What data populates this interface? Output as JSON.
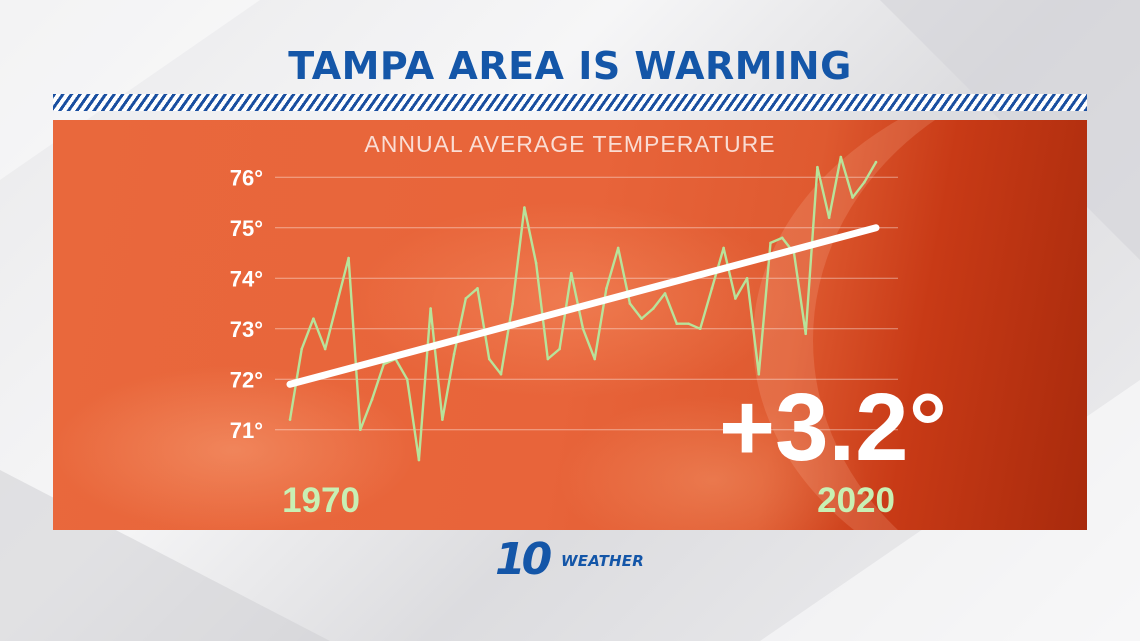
{
  "header": {
    "title": "TAMPA AREA IS WARMING"
  },
  "colors": {
    "title_blue": "#1456a8",
    "panel_orange": "#e8643a",
    "series_line": "#b8e39a",
    "trend_line": "#ffffff",
    "tick_text": "#ffffff",
    "year_text": "#c8f0b4"
  },
  "chart_data": {
    "type": "line",
    "title": "ANNUAL AVERAGE TEMPERATURE",
    "x_start_label": "1970",
    "x_end_label": "2020",
    "xlim": [
      1970,
      2020
    ],
    "ylim": [
      70.5,
      76.5
    ],
    "yticks": [
      {
        "value": 71,
        "label": "71°"
      },
      {
        "value": 72,
        "label": "72°"
      },
      {
        "value": 73,
        "label": "73°"
      },
      {
        "value": 74,
        "label": "74°"
      },
      {
        "value": 75,
        "label": "75°"
      },
      {
        "value": 76,
        "label": "76°"
      }
    ],
    "grid": true,
    "series": [
      {
        "x": [
          1970,
          1971,
          1972,
          1973,
          1974,
          1975,
          1976,
          1977,
          1978,
          1979,
          1980,
          1981,
          1982,
          1983,
          1984,
          1985,
          1986,
          1987,
          1988,
          1989,
          1990,
          1991,
          1992,
          1993,
          1994,
          1995,
          1996,
          1997,
          1998,
          1999,
          2000,
          2001,
          2002,
          2003,
          2004,
          2005,
          2006,
          2007,
          2008,
          2009,
          2010,
          2011,
          2012,
          2013,
          2014,
          2015,
          2016,
          2017,
          2018,
          2019,
          2020
        ],
        "y": [
          71.2,
          72.6,
          73.2,
          72.6,
          73.5,
          74.4,
          71.0,
          71.6,
          72.3,
          72.4,
          72.0,
          70.4,
          73.4,
          71.2,
          72.5,
          73.6,
          73.8,
          72.4,
          72.1,
          73.5,
          75.4,
          74.3,
          72.4,
          72.6,
          74.1,
          73.0,
          72.4,
          73.8,
          74.6,
          73.5,
          73.2,
          73.4,
          73.7,
          73.1,
          73.1,
          73.0,
          73.8,
          74.6,
          73.6,
          74.0,
          72.1,
          74.7,
          74.8,
          74.5,
          72.9,
          76.2,
          75.2,
          76.4,
          75.6,
          75.9,
          76.3
        ]
      }
    ],
    "trend": {
      "x": [
        1970,
        2020
      ],
      "y": [
        71.9,
        75.0
      ]
    },
    "annotation": "+3.2°"
  }
}
